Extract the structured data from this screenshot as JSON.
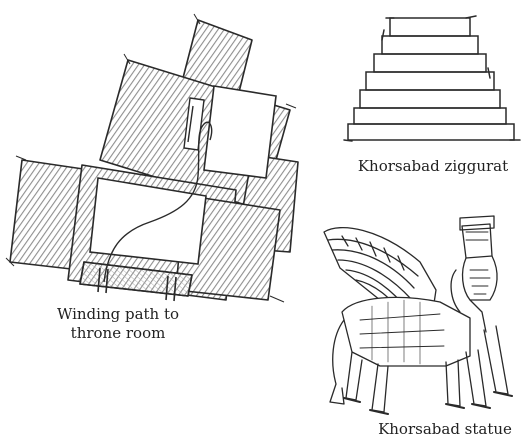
{
  "captions": {
    "plan_line1": "Winding path to",
    "plan_line2": "throne room",
    "ziggurat": "Khorsabad ziggurat",
    "statue": "Khorsabad statue"
  },
  "colors": {
    "ink": "#2a2a2a",
    "hatch": "#9a9a9a",
    "paper": "#ffffff"
  }
}
